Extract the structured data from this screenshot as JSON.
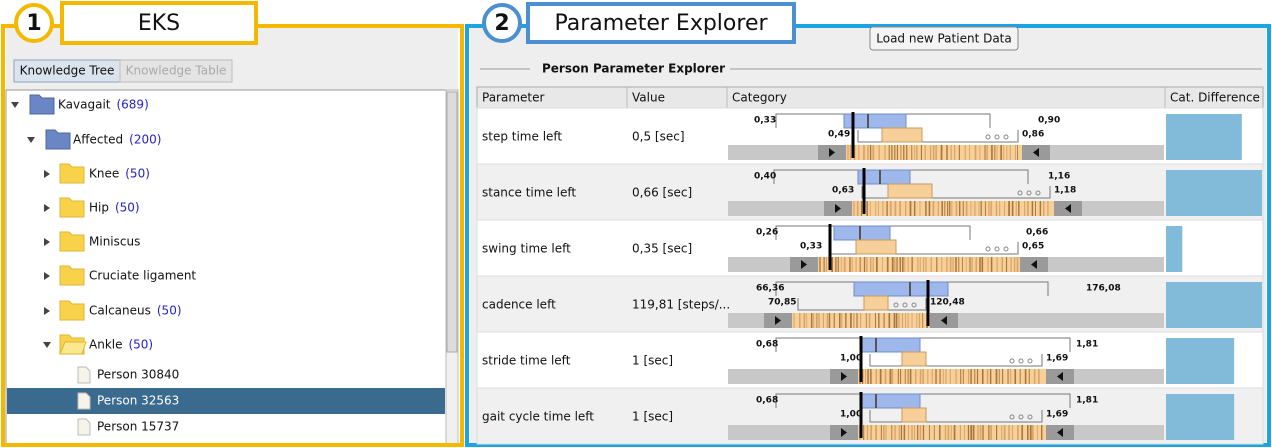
{
  "left_panel": {
    "badge": "1",
    "label": "EKS",
    "tabs": [
      "Knowledge Tree",
      "Knowledge Table"
    ],
    "tree": [
      {
        "label": "Kavagait",
        "count": "(689)"
      },
      {
        "label": "Affected",
        "count": "(200)"
      },
      {
        "label": "Knee",
        "count": "(50)"
      },
      {
        "label": "Hip",
        "count": "(50)"
      },
      {
        "label": "Miniscus"
      },
      {
        "label": "Cruciate ligament"
      },
      {
        "label": "Calcaneus",
        "count": "(50)"
      },
      {
        "label": "Ankle",
        "count": "(50)"
      },
      {
        "label": "Person 30840"
      },
      {
        "label": "Person 32563"
      },
      {
        "label": "Person 15737"
      }
    ]
  },
  "right_panel": {
    "badge": "2",
    "label": "Parameter Explorer",
    "button": "Load new Patient Data",
    "section_title": "Person Parameter Explorer",
    "table": {
      "columns": [
        "Parameter",
        "Value",
        "Category",
        "Cat. Difference"
      ],
      "rows": [
        {
          "parameter": "step time left",
          "value": "0,5 [sec]",
          "labels": [
            "0,33",
            "0,49",
            "0,90",
            "0,86"
          ],
          "cat_difference": 0.79
        },
        {
          "parameter": "stance time left",
          "value": "0,66 [sec]",
          "labels": [
            "0,40",
            "0,63",
            "1,16",
            "1,18"
          ],
          "cat_difference": 1.0
        },
        {
          "parameter": "swing time left",
          "value": "0,35 [sec]",
          "labels": [
            "0,26",
            "0,33",
            "0,66",
            "0,65"
          ],
          "cat_difference": 0.17
        },
        {
          "parameter": "cadence left",
          "value": "119,81 [steps/...",
          "labels": [
            "66,36",
            "70,85",
            "176,08",
            "120,48"
          ],
          "cat_difference": 1.0
        },
        {
          "parameter": "stride time left",
          "value": "1 [sec]",
          "labels": [
            "0,68",
            "1,00",
            "1,81",
            "1,69"
          ],
          "cat_difference": 0.71
        },
        {
          "parameter": "gait cycle time left",
          "value": "1 [sec]",
          "labels": [
            "0,68",
            "1,00",
            "1,81",
            "1,69"
          ],
          "cat_difference": 0.71
        }
      ]
    }
  }
}
